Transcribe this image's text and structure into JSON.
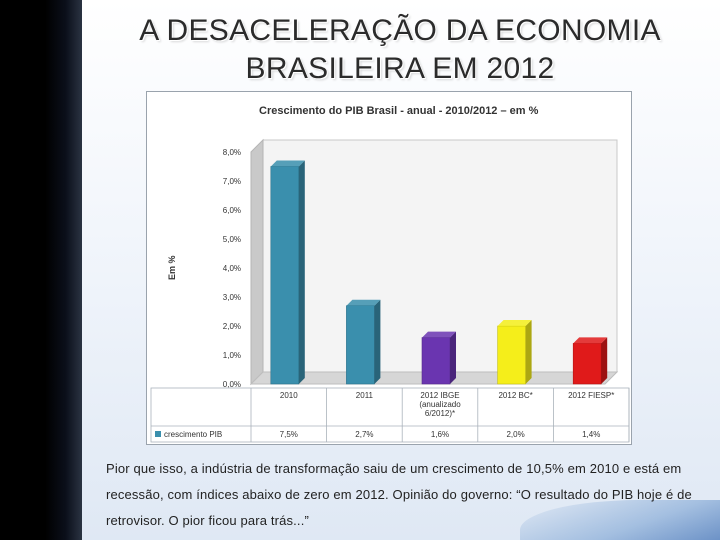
{
  "slide": {
    "title_line1": "A DESACELERAÇÃO DA ECONOMIA",
    "title_line2": "BRASILEIRA EM 2012",
    "caption": "Pior que isso, a indústria de transformação saiu de um crescimento de 10,5% em 2010 e está em recessão, com índices abaixo de zero em 2012. Opinião do governo: “O resultado do PIB hoje é de retrovisor. O pior ficou para trás...”"
  },
  "chart_data": {
    "type": "bar",
    "title": "Crescimento do PIB Brasil  -  anual - 2010/2012 – em %",
    "ylabel": "Em %",
    "ylim": [
      0,
      8
    ],
    "yticks": [
      "0,0%",
      "1,0%",
      "2,0%",
      "3,0%",
      "4,0%",
      "5,0%",
      "6,0%",
      "7,0%",
      "8,0%"
    ],
    "categories": [
      "2010",
      "2011",
      "2012 IBGE (anualizado 6/2012)*",
      "2012 BC*",
      "2012 FIESP*"
    ],
    "category_lines": [
      [
        "2010"
      ],
      [
        "2011"
      ],
      [
        "2012 IBGE",
        "(anualizado",
        "6/2012)*"
      ],
      [
        "2012 BC*"
      ],
      [
        "2012 FIESP*"
      ]
    ],
    "values": [
      7.5,
      2.7,
      1.6,
      2.0,
      1.4
    ],
    "value_labels": [
      "7,5%",
      "2,7%",
      "1,6%",
      "2,0%",
      "1,4%"
    ],
    "bar_colors": [
      "#3a8fad",
      "#3a8fad",
      "#6a35b0",
      "#f5ee1a",
      "#e01a1a"
    ],
    "series": [
      {
        "name": "crescimento PIB",
        "values": [
          7.5,
          2.7,
          1.6,
          2.0,
          1.4
        ]
      }
    ],
    "legend": "data-table-left",
    "grid": false
  }
}
